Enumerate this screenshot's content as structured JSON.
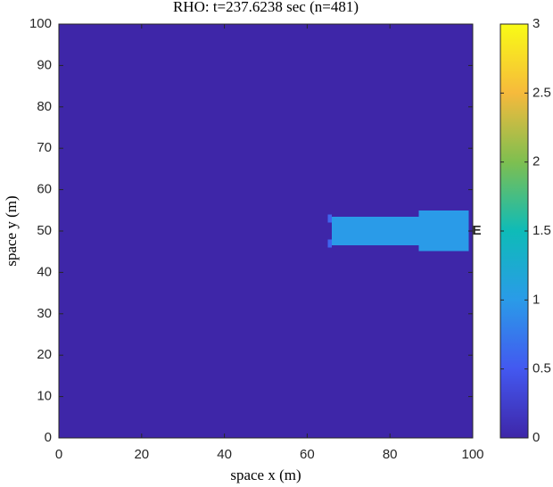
{
  "chart_data": {
    "type": "heatmap",
    "title": "RHO: t=237.6238 sec (n=481)",
    "x_label": "space x (m)",
    "y_label": "space y (m)",
    "xlim": [
      0,
      100
    ],
    "xticks": [
      0,
      20,
      40,
      60,
      80,
      100
    ],
    "ylim": [
      0,
      100
    ],
    "yticks": [
      0,
      10,
      20,
      30,
      40,
      50,
      60,
      70,
      80,
      90,
      100
    ],
    "clim": [
      0,
      3
    ],
    "cticks": [
      0,
      0.5,
      1,
      1.5,
      2,
      2.5,
      3
    ],
    "colormap": [
      "#3e26a8",
      "#4358f0",
      "#2a9be8",
      "#0ebbb8",
      "#7ebf50",
      "#f6ba3c",
      "#f9fb15"
    ],
    "regions": [
      {
        "x": [
          0,
          100
        ],
        "y": [
          0,
          100
        ],
        "value": 0
      },
      {
        "x": [
          65,
          66
        ],
        "y": [
          52,
          54
        ],
        "value": 0.6
      },
      {
        "x": [
          65,
          66
        ],
        "y": [
          46,
          48
        ],
        "value": 0.6
      },
      {
        "x": [
          66,
          87
        ],
        "y": [
          46.5,
          53.5
        ],
        "value": 1
      },
      {
        "x": [
          87,
          99
        ],
        "y": [
          45.2,
          55
        ],
        "value": 1
      }
    ],
    "annotations": [
      {
        "text": "E",
        "x": 99.5,
        "y": 50
      }
    ]
  }
}
